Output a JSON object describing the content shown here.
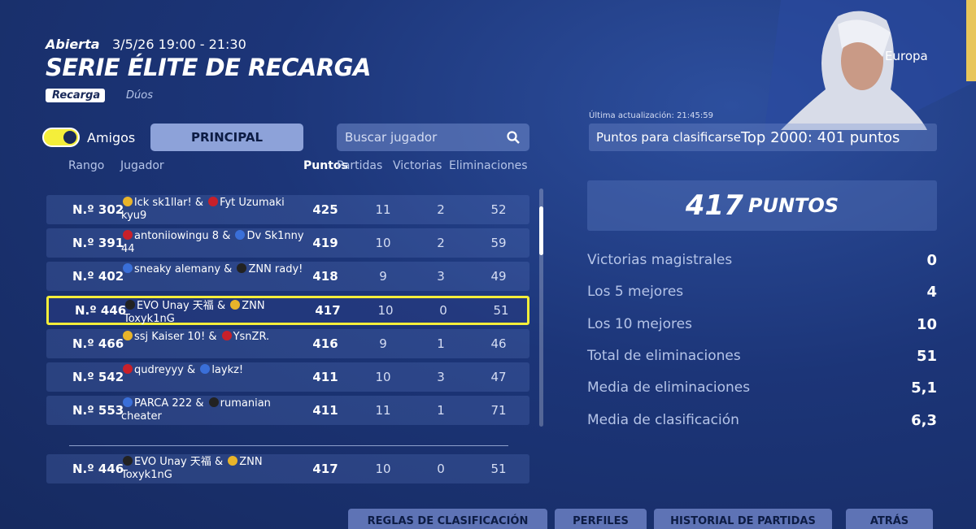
{
  "header": {
    "status": "Abierta",
    "datetime": "3/5/26 19:00 - 21:30",
    "title": "SERIE ÉLITE DE RECARGA",
    "mode": "Recarga",
    "team": "Dúos"
  },
  "region": "Europa",
  "last_update": "Última actualización: 21:45:59",
  "qualify": {
    "label": "Puntos para clasificarse",
    "value": "Top 2000: 401 puntos"
  },
  "controls": {
    "toggle": "Amigos",
    "tab": "PRINCIPAL",
    "search": "Buscar jugador"
  },
  "table": {
    "columns": [
      "Rango",
      "Jugador",
      "Puntos",
      "Partidas",
      "Victorias",
      "Eliminaciones"
    ],
    "separator": "&",
    "rows": [
      {
        "rank": "N.º 302",
        "players": [
          "lck sk1llar!",
          "Fyt Uzumaki kyu9"
        ],
        "points": 425,
        "matches": 11,
        "wins": 2,
        "elims": 52
      },
      {
        "rank": "N.º 391",
        "players": [
          "antoniiowingu 8",
          "Dv Sk1nny 44"
        ],
        "points": 419,
        "matches": 10,
        "wins": 2,
        "elims": 59
      },
      {
        "rank": "N.º 402",
        "players": [
          "sneaky alemany",
          "ZNN rady!"
        ],
        "points": 418,
        "matches": 9,
        "wins": 3,
        "elims": 49
      },
      {
        "rank": "N.º 446",
        "players": [
          "EVO Unay 天福",
          "ZNN Toxyk1nG"
        ],
        "points": 417,
        "matches": 10,
        "wins": 0,
        "elims": 51
      },
      {
        "rank": "N.º 466",
        "players": [
          "ssj Kaiser 10!",
          "YsnZR."
        ],
        "points": 416,
        "matches": 9,
        "wins": 1,
        "elims": 46
      },
      {
        "rank": "N.º 542",
        "players": [
          "qudreyyy",
          "laykz!"
        ],
        "points": 411,
        "matches": 10,
        "wins": 3,
        "elims": 47
      },
      {
        "rank": "N.º 553",
        "players": [
          "PARCA 222",
          "rumanian cheater"
        ],
        "points": 411,
        "matches": 11,
        "wins": 1,
        "elims": 71
      }
    ],
    "self": {
      "rank": "N.º 446",
      "players": [
        "EVO Unay 天福",
        "ZNN Toxyk1nG"
      ],
      "points": 417,
      "matches": 10,
      "wins": 0,
      "elims": 51
    }
  },
  "score": {
    "value": 417,
    "unit": "PUNTOS"
  },
  "stats": [
    {
      "label": "Victorias magistrales",
      "value": 0
    },
    {
      "label": "Los 5 mejores",
      "value": 4
    },
    {
      "label": "Los 10 mejores",
      "value": 10
    },
    {
      "label": "Total de eliminaciones",
      "value": 51
    },
    {
      "label": "Media de eliminaciones",
      "value": "5,1"
    },
    {
      "label": "Media de clasificación",
      "value": "6,3"
    }
  ],
  "buttons": [
    "REGLAS DE CLASIFICACIÓN",
    "PERFILES",
    "HISTORIAL DE PARTIDAS",
    "ATRÁS"
  ]
}
